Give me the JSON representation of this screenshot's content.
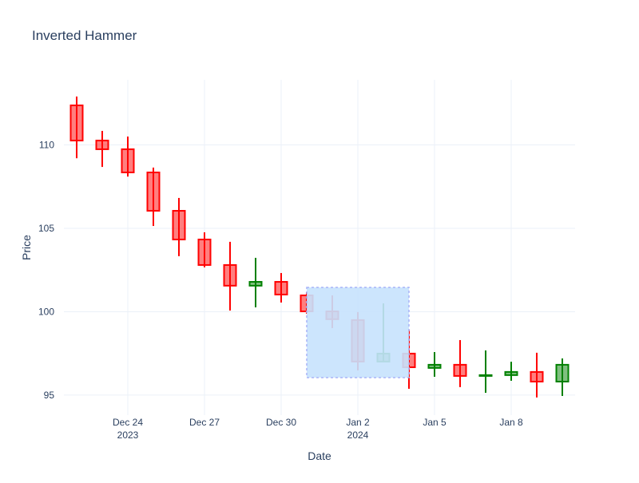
{
  "chart_data": {
    "type": "candlestick",
    "title": "Inverted Hammer",
    "xlabel": "Date",
    "ylabel": "Price",
    "xlim": [
      "2023-12-21T12:00",
      "2024-01-10T12:00"
    ],
    "ylim": [
      93.8,
      113.9
    ],
    "grid": true,
    "x_ticks": [
      {
        "date": "2023-12-24",
        "label": "Dec 24",
        "sub": "2023"
      },
      {
        "date": "2023-12-27",
        "label": "Dec 27",
        "sub": ""
      },
      {
        "date": "2023-12-30",
        "label": "Dec 30",
        "sub": ""
      },
      {
        "date": "2024-01-02",
        "label": "Jan 2",
        "sub": "2024"
      },
      {
        "date": "2024-01-05",
        "label": "Jan 5",
        "sub": ""
      },
      {
        "date": "2024-01-08",
        "label": "Jan 8",
        "sub": ""
      }
    ],
    "y_ticks": [
      95,
      100,
      105,
      110
    ],
    "colors": {
      "increasing": "#008000",
      "decreasing": "#ff0000",
      "selection": "#c6e2fd",
      "grid": "#ebf0f8",
      "text": "#2a3f5f"
    },
    "candles": [
      {
        "date": "2023-12-22",
        "open": 112.37,
        "high": 112.9,
        "low": 109.2,
        "close": 110.26
      },
      {
        "date": "2023-12-23",
        "open": 110.26,
        "high": 110.84,
        "low": 108.68,
        "close": 109.74
      },
      {
        "date": "2023-12-24",
        "open": 109.74,
        "high": 110.5,
        "low": 108.1,
        "close": 108.35
      },
      {
        "date": "2023-12-25",
        "open": 108.35,
        "high": 108.64,
        "low": 105.14,
        "close": 106.05
      },
      {
        "date": "2023-12-26",
        "open": 106.05,
        "high": 106.82,
        "low": 103.33,
        "close": 104.33
      },
      {
        "date": "2023-12-27",
        "open": 104.33,
        "high": 104.76,
        "low": 102.66,
        "close": 102.8
      },
      {
        "date": "2023-12-28",
        "open": 102.8,
        "high": 104.19,
        "low": 100.07,
        "close": 101.56
      },
      {
        "date": "2023-12-29",
        "open": 101.56,
        "high": 103.23,
        "low": 100.26,
        "close": 101.79
      },
      {
        "date": "2023-12-30",
        "open": 101.79,
        "high": 102.32,
        "low": 100.55,
        "close": 101.03
      },
      {
        "date": "2023-12-31",
        "open": 100.98,
        "high": 101.17,
        "low": 99.88,
        "close": 100.02
      },
      {
        "date": "2024-01-01",
        "open": 100.02,
        "high": 100.98,
        "low": 99.02,
        "close": 99.55
      },
      {
        "date": "2024-01-02",
        "open": 99.5,
        "high": 99.98,
        "low": 96.48,
        "close": 97.01
      },
      {
        "date": "2024-01-03",
        "open": 97.01,
        "high": 100.5,
        "low": 97.01,
        "close": 97.49
      },
      {
        "date": "2024-01-04",
        "open": 97.49,
        "high": 98.92,
        "low": 95.38,
        "close": 96.67
      },
      {
        "date": "2024-01-05",
        "open": 96.63,
        "high": 97.58,
        "low": 96.1,
        "close": 96.82
      },
      {
        "date": "2024-01-06",
        "open": 96.82,
        "high": 98.3,
        "low": 95.48,
        "close": 96.15
      },
      {
        "date": "2024-01-07",
        "open": 96.15,
        "high": 97.68,
        "low": 95.14,
        "close": 96.2
      },
      {
        "date": "2024-01-08",
        "open": 96.2,
        "high": 97.0,
        "low": 95.86,
        "close": 96.39
      },
      {
        "date": "2024-01-09",
        "open": 96.39,
        "high": 97.54,
        "low": 94.86,
        "close": 95.81
      },
      {
        "date": "2024-01-10",
        "open": 95.81,
        "high": 97.2,
        "low": 94.95,
        "close": 96.82
      }
    ],
    "highlight": {
      "x0": "2023-12-31",
      "x1": "2024-01-04",
      "y0": 96.05,
      "y1": 101.46
    }
  }
}
